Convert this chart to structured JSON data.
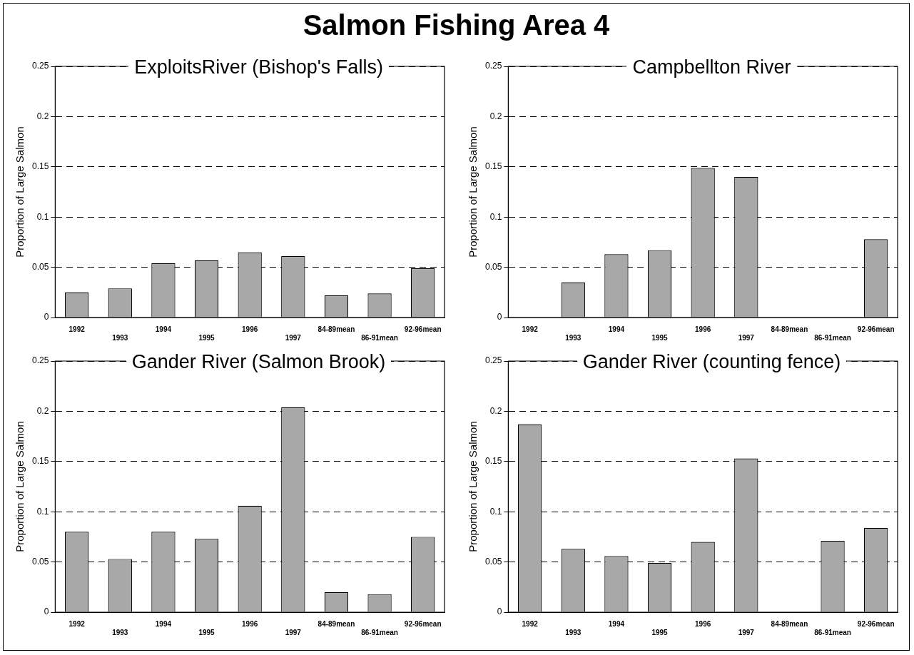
{
  "chart_data": [
    {
      "type": "other",
      "title": "Salmon Fishing Area 4"
    },
    {
      "type": "bar",
      "title": "ExploitsRiver (Bishop's Falls)",
      "ylabel": "Proportion of Large Salmon",
      "categories": [
        "1992",
        "1993",
        "1994",
        "1995",
        "1996",
        "1997",
        "84-89mean",
        "86-91mean",
        "92-96mean"
      ],
      "series": [
        {
          "color": "#a8a8a8",
          "values": [
            0.025,
            0.029,
            0.054,
            0.057,
            0.065,
            0.061,
            0.022,
            0.024,
            0.049
          ]
        }
      ],
      "ylim": [
        0,
        0.25
      ],
      "yticks": [
        0,
        0.05,
        0.1,
        0.15,
        0.2,
        0.25
      ],
      "grid": "y",
      "legend": false
    },
    {
      "type": "bar",
      "title": "Campbellton River",
      "ylabel": "Proportion of Large Salmon",
      "categories": [
        "1992",
        "1993",
        "1994",
        "1995",
        "1996",
        "1997",
        "84-89mean",
        "86-91mean",
        "92-96mean"
      ],
      "series": [
        {
          "color": "#a8a8a8",
          "values": [
            null,
            0.035,
            0.063,
            0.067,
            0.149,
            0.14,
            null,
            null,
            0.078
          ]
        }
      ],
      "ylim": [
        0,
        0.25
      ],
      "yticks": [
        0,
        0.05,
        0.1,
        0.15,
        0.2,
        0.25
      ],
      "grid": "y",
      "legend": false
    },
    {
      "type": "bar",
      "title": "Gander River (Salmon Brook)",
      "ylabel": "Proportion of Large Salmon",
      "categories": [
        "1992",
        "1993",
        "1994",
        "1995",
        "1996",
        "1997",
        "84-89mean",
        "86-91mean",
        "92-96mean"
      ],
      "series": [
        {
          "color": "#a8a8a8",
          "values": [
            0.08,
            0.053,
            0.08,
            0.073,
            0.106,
            0.204,
            0.02,
            0.018,
            0.075
          ]
        }
      ],
      "ylim": [
        0,
        0.25
      ],
      "yticks": [
        0,
        0.05,
        0.1,
        0.15,
        0.2,
        0.25
      ],
      "grid": "y",
      "legend": false
    },
    {
      "type": "bar",
      "title": "Gander River (counting fence)",
      "ylabel": "Proportion of Large Salmon",
      "categories": [
        "1992",
        "1993",
        "1994",
        "1995",
        "1996",
        "1997",
        "84-89mean",
        "86-91mean",
        "92-96mean"
      ],
      "series": [
        {
          "color": "#a8a8a8",
          "values": [
            0.187,
            0.063,
            0.056,
            0.049,
            0.07,
            0.153,
            null,
            0.071,
            0.084
          ]
        }
      ],
      "ylim": [
        0,
        0.25
      ],
      "yticks": [
        0,
        0.05,
        0.1,
        0.15,
        0.2,
        0.25
      ],
      "grid": "y",
      "legend": false
    }
  ]
}
